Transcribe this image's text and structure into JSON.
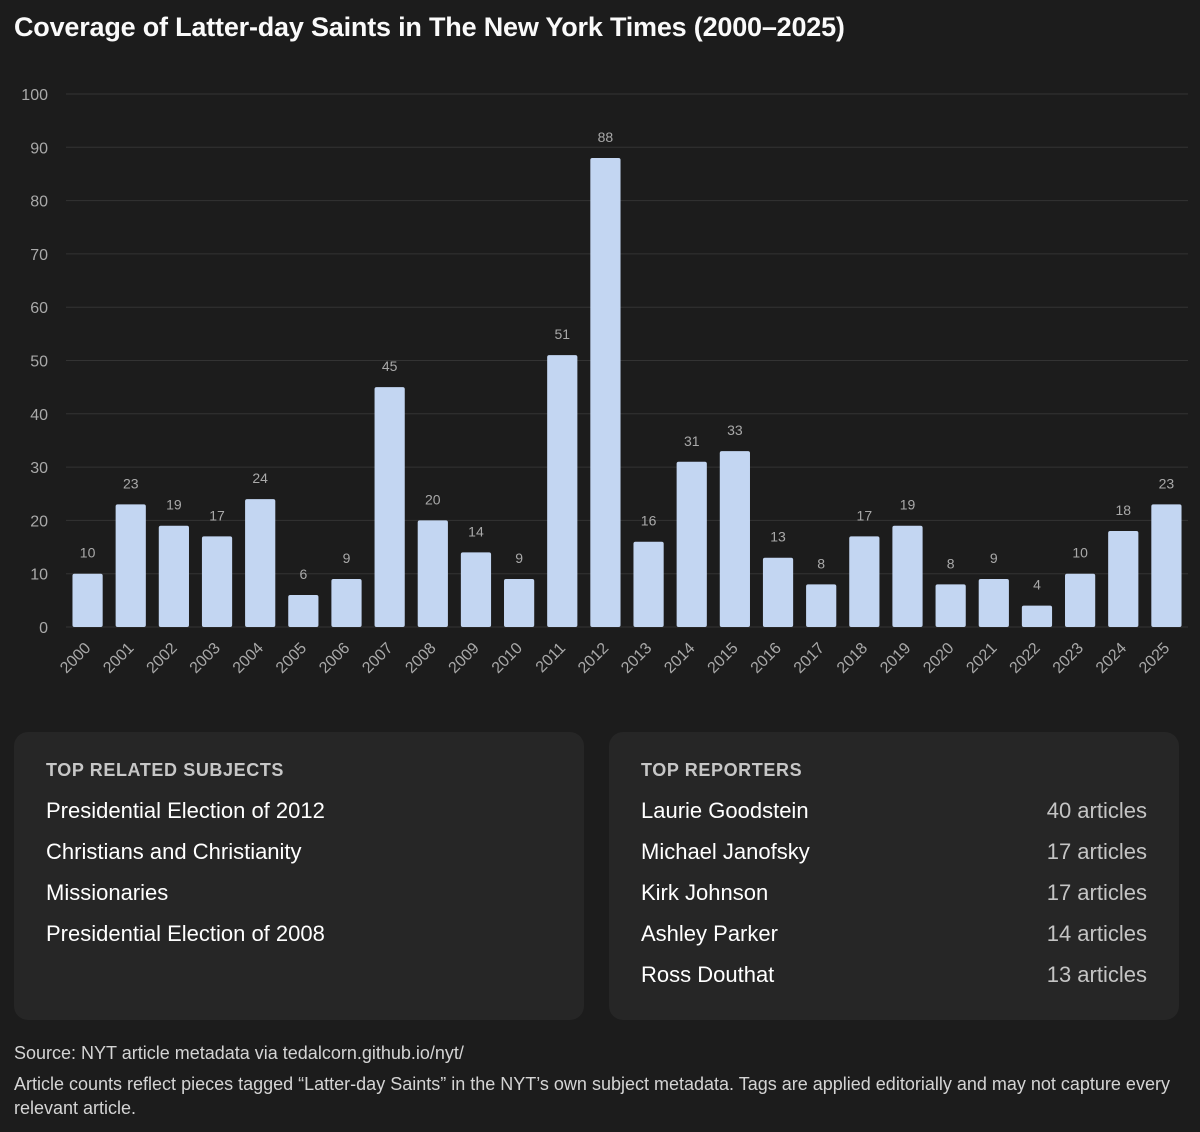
{
  "page": {
    "title": "Coverage of Latter-day Saints in The New York Times (2000–2025)"
  },
  "chart_data": {
    "type": "bar",
    "title": "Coverage of Latter-day Saints in The New York Times (2000–2025)",
    "xlabel": "",
    "ylabel": "",
    "categories": [
      "2000",
      "2001",
      "2002",
      "2003",
      "2004",
      "2005",
      "2006",
      "2007",
      "2008",
      "2009",
      "2010",
      "2011",
      "2012",
      "2013",
      "2014",
      "2015",
      "2016",
      "2017",
      "2018",
      "2019",
      "2020",
      "2021",
      "2022",
      "2023",
      "2024",
      "2025"
    ],
    "values": [
      10,
      23,
      19,
      17,
      24,
      6,
      9,
      45,
      20,
      14,
      9,
      51,
      88,
      16,
      31,
      33,
      13,
      8,
      17,
      19,
      8,
      9,
      4,
      10,
      18,
      23
    ],
    "ylim": [
      0,
      100
    ],
    "yticks": [
      0,
      10,
      20,
      30,
      40,
      50,
      60,
      70,
      80,
      90,
      100
    ],
    "grid": true,
    "data_labels": true,
    "bar_color": "#c3d6f2",
    "label_color": "#a9a9a9",
    "tick_color": "#a9a9a9",
    "grid_color": "#333333"
  },
  "subjects": {
    "heading": "TOP RELATED SUBJECTS",
    "items": [
      "Presidential Election of 2012",
      "Christians and Christianity",
      "Missionaries",
      "Presidential Election of 2008"
    ]
  },
  "reporters": {
    "heading": "TOP REPORTERS",
    "items": [
      {
        "name": "Laurie Goodstein",
        "count": "40 articles"
      },
      {
        "name": "Michael Janofsky",
        "count": "17 articles"
      },
      {
        "name": "Kirk Johnson",
        "count": "17 articles"
      },
      {
        "name": "Ashley Parker",
        "count": "14 articles"
      },
      {
        "name": "Ross Douthat",
        "count": "13 articles"
      }
    ]
  },
  "footer": {
    "source": "Source: NYT article metadata via tedalcorn.github.io/nyt/",
    "note": "Article counts reflect pieces tagged “Latter-day Saints” in the NYT’s own subject metadata. Tags are applied editorially and may not capture every relevant article."
  }
}
